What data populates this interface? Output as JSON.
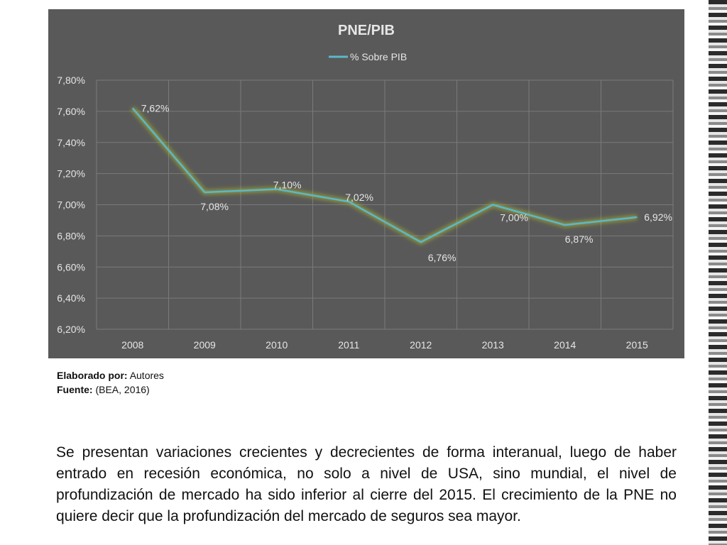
{
  "chart_data": {
    "type": "line",
    "title": "PNE/PIB",
    "categories": [
      "2008",
      "2009",
      "2010",
      "2011",
      "2012",
      "2013",
      "2014",
      "2015"
    ],
    "series": [
      {
        "name": "% Sobre PIB",
        "values": [
          7.62,
          7.08,
          7.1,
          7.02,
          6.76,
          7.0,
          6.87,
          6.92
        ],
        "labels": [
          "7,62%",
          "7,08%",
          "7,10%",
          "7,02%",
          "6,76%",
          "7,00%",
          "6,87%",
          "6,92%"
        ],
        "color": "#5bb8c9"
      }
    ],
    "y_ticks": [
      "7,80%",
      "7,60%",
      "7,40%",
      "7,20%",
      "7,00%",
      "6,80%",
      "6,60%",
      "6,40%",
      "6,20%"
    ],
    "ylim": [
      6.2,
      7.8
    ],
    "grid": true,
    "legend": "top"
  },
  "source": {
    "author_label": "Elaborado por:",
    "author_value": "Autores",
    "source_label": "Fuente:",
    "source_value": "(BEA, 2016)"
  },
  "paragraph": "Se presentan variaciones crecientes y decrecientes de forma interanual, luego de haber entrado en recesión económica, no solo a nivel de USA, sino mundial, el nivel de profundización de mercado ha sido inferior al cierre del 2015. El crecimiento de la PNE no quiere decir que la profundización del mercado de seguros sea mayor.",
  "colors": {
    "chart_background": "#595959",
    "grid": "#7a7a7a",
    "line": "#5bb8c9",
    "glow": "#b5c22a",
    "text": "#e6e6e6"
  }
}
